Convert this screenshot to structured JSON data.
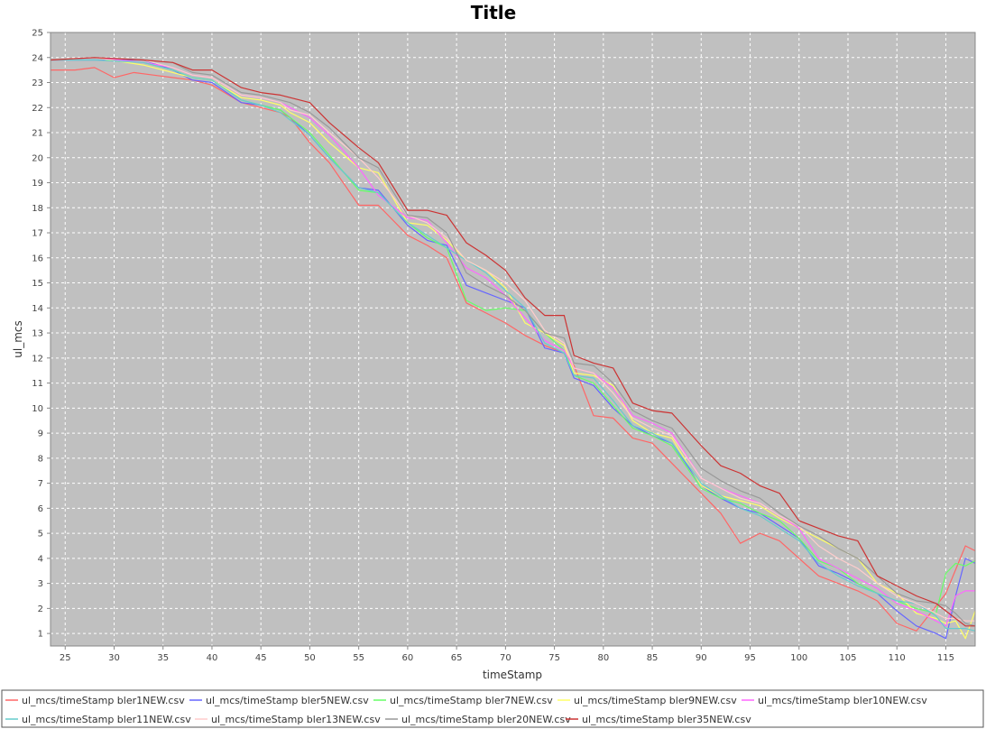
{
  "chart_data": {
    "type": "line",
    "title": "Title",
    "xlabel": "timeStamp",
    "ylabel": "ul_mcs",
    "xlim": [
      23.5,
      118
    ],
    "ylim": [
      0.5,
      25
    ],
    "xticks": [
      25,
      30,
      35,
      40,
      45,
      50,
      55,
      60,
      65,
      70,
      75,
      80,
      85,
      90,
      95,
      100,
      105,
      110,
      115
    ],
    "yticks": [
      1,
      2,
      3,
      4,
      5,
      6,
      7,
      8,
      9,
      10,
      11,
      12,
      13,
      14,
      15,
      16,
      17,
      18,
      19,
      20,
      21,
      22,
      23,
      24,
      25
    ],
    "xtick_labels": [
      "25",
      "30",
      "35",
      "40",
      "45",
      "50",
      "55",
      "60",
      "65",
      "70",
      "75",
      "80",
      "85",
      "90",
      "95",
      "100",
      "105",
      "110",
      "115"
    ],
    "ytick_labels": [
      "1",
      "2",
      "3",
      "4",
      "5",
      "6",
      "7",
      "8",
      "9",
      "10",
      "11",
      "12",
      "13",
      "14",
      "15",
      "16",
      "17",
      "18",
      "19",
      "20",
      "21",
      "22",
      "23",
      "24",
      "25"
    ],
    "grid": true,
    "legend_position": "bottom",
    "plot_background": "#c0c0c0",
    "series": [
      {
        "name": "ul_mcs/timeStamp bler1NEW.csv",
        "color": "#ff6666",
        "x": [
          23.5,
          26,
          28,
          30,
          32,
          34,
          36,
          38,
          40,
          43,
          45,
          47,
          48,
          50,
          52,
          55,
          57,
          60,
          62,
          64,
          66,
          68,
          70,
          72,
          74,
          76,
          77,
          79,
          81,
          83,
          85,
          87,
          90,
          92,
          94,
          96,
          98,
          100,
          102,
          104,
          106,
          108,
          110,
          112,
          113,
          115,
          117,
          118
        ],
        "y": [
          23.5,
          23.5,
          23.6,
          23.2,
          23.4,
          23.3,
          23.2,
          23.1,
          22.9,
          22.2,
          22.0,
          21.8,
          21.6,
          20.6,
          19.8,
          18.1,
          18.1,
          16.9,
          16.5,
          16.0,
          14.2,
          13.8,
          13.4,
          12.9,
          12.5,
          12.2,
          11.7,
          9.7,
          9.6,
          8.8,
          8.6,
          7.8,
          6.6,
          5.8,
          4.6,
          5.0,
          4.7,
          4.0,
          3.3,
          3.0,
          2.7,
          2.3,
          1.4,
          1.1,
          1.6,
          2.6,
          4.5,
          4.3
        ]
      },
      {
        "name": "ul_mcs/timeStamp bler5NEW.csv",
        "color": "#6666ff",
        "x": [
          23.5,
          28,
          33,
          36,
          38,
          40,
          43,
          45,
          47,
          48,
          50,
          52,
          55,
          57,
          60,
          62,
          64,
          66,
          68,
          70,
          72,
          74,
          76,
          77,
          79,
          81,
          83,
          85,
          87,
          90,
          92,
          94,
          96,
          98,
          100,
          102,
          104,
          106,
          108,
          110,
          112,
          114,
          115,
          116,
          117,
          118
        ],
        "y": [
          23.9,
          23.9,
          23.9,
          23.5,
          23.1,
          23.0,
          22.2,
          22.1,
          21.9,
          21.6,
          20.9,
          20.0,
          18.8,
          18.7,
          17.3,
          16.7,
          16.5,
          14.9,
          14.6,
          14.3,
          14.0,
          12.4,
          12.2,
          11.2,
          10.9,
          10.0,
          9.3,
          8.9,
          8.6,
          6.9,
          6.4,
          6.0,
          5.8,
          5.3,
          4.8,
          3.7,
          3.4,
          3.0,
          2.6,
          1.9,
          1.3,
          1.0,
          0.8,
          2.5,
          4.0,
          3.8
        ]
      },
      {
        "name": "ul_mcs/timeStamp bler7NEW.csv",
        "color": "#66ff66",
        "x": [
          23.5,
          28,
          33,
          36,
          38,
          40,
          43,
          45,
          47,
          48,
          50,
          52,
          55,
          57,
          60,
          62,
          64,
          66,
          68,
          70,
          72,
          74,
          76,
          77,
          79,
          81,
          83,
          85,
          87,
          90,
          92,
          94,
          96,
          98,
          100,
          102,
          104,
          106,
          108,
          110,
          112,
          114,
          115,
          116,
          117,
          118
        ],
        "y": [
          23.9,
          24.0,
          23.8,
          23.5,
          23.2,
          23.1,
          22.3,
          22.1,
          21.9,
          21.6,
          21.0,
          20.1,
          18.7,
          18.6,
          17.4,
          16.8,
          16.4,
          14.3,
          13.9,
          14.0,
          13.9,
          13.0,
          12.3,
          11.3,
          11.0,
          10.1,
          9.2,
          8.9,
          8.5,
          6.8,
          6.4,
          6.2,
          5.8,
          5.5,
          4.8,
          3.9,
          3.6,
          3.0,
          2.6,
          2.3,
          2.0,
          1.8,
          3.4,
          3.8,
          3.7,
          3.9
        ]
      },
      {
        "name": "ul_mcs/timeStamp bler9NEW.csv",
        "color": "#ffff66",
        "x": [
          23.5,
          28,
          33,
          36,
          38,
          40,
          43,
          45,
          47,
          48,
          50,
          52,
          55,
          57,
          60,
          62,
          64,
          66,
          68,
          70,
          72,
          74,
          76,
          77,
          79,
          81,
          83,
          85,
          87,
          90,
          92,
          94,
          96,
          98,
          100,
          102,
          104,
          106,
          108,
          110,
          112,
          114,
          115,
          116,
          117,
          118
        ],
        "y": [
          23.9,
          24.0,
          23.7,
          23.4,
          23.2,
          23.1,
          22.4,
          22.3,
          22.1,
          21.8,
          21.4,
          20.6,
          19.6,
          19.4,
          17.4,
          17.3,
          16.7,
          15.9,
          15.5,
          14.8,
          13.4,
          13.0,
          12.5,
          11.4,
          11.3,
          10.9,
          9.5,
          9.0,
          8.8,
          6.9,
          6.5,
          6.3,
          6.1,
          5.6,
          5.2,
          4.8,
          4.4,
          4.0,
          3.0,
          2.6,
          1.8,
          1.6,
          1.4,
          1.5,
          0.8,
          1.9
        ]
      },
      {
        "name": "ul_mcs/timeStamp bler10NEW.csv",
        "color": "#ff66ff",
        "x": [
          23.5,
          28,
          33,
          36,
          38,
          40,
          43,
          45,
          47,
          48,
          50,
          52,
          55,
          57,
          60,
          62,
          64,
          66,
          68,
          70,
          72,
          74,
          76,
          77,
          79,
          81,
          83,
          85,
          87,
          90,
          92,
          94,
          96,
          98,
          100,
          102,
          104,
          106,
          108,
          110,
          112,
          114,
          115,
          116,
          117,
          118
        ],
        "y": [
          23.9,
          24.0,
          23.8,
          23.6,
          23.3,
          23.2,
          22.5,
          22.4,
          22.2,
          22.0,
          21.6,
          20.9,
          19.6,
          18.5,
          17.6,
          17.5,
          16.6,
          15.6,
          15.2,
          14.5,
          13.6,
          12.7,
          12.3,
          11.6,
          11.4,
          10.8,
          9.7,
          9.4,
          9.0,
          7.2,
          6.8,
          6.5,
          6.2,
          5.7,
          5.2,
          4.0,
          3.6,
          3.2,
          2.8,
          2.2,
          1.9,
          1.5,
          1.3,
          2.5,
          2.7,
          2.7
        ]
      },
      {
        "name": "ul_mcs/timeStamp bler11NEW.csv",
        "color": "#66cccc",
        "x": [
          23.5,
          28,
          33,
          36,
          38,
          40,
          43,
          45,
          47,
          48,
          50,
          52,
          55,
          57,
          60,
          62,
          64,
          66,
          68,
          70,
          72,
          74,
          76,
          77,
          79,
          81,
          83,
          85,
          87,
          90,
          92,
          94,
          96,
          98,
          100,
          102,
          104,
          106,
          108,
          110,
          112,
          114,
          115,
          116,
          117,
          118
        ],
        "y": [
          23.9,
          23.9,
          23.8,
          23.5,
          23.2,
          23.1,
          22.3,
          22.1,
          21.8,
          21.5,
          20.9,
          20.0,
          18.8,
          18.6,
          17.4,
          16.9,
          16.4,
          15.9,
          15.4,
          14.7,
          14.0,
          12.6,
          12.2,
          11.3,
          11.2,
          10.3,
          9.3,
          9.0,
          8.6,
          7.0,
          6.5,
          6.0,
          5.7,
          5.2,
          4.7,
          3.8,
          3.3,
          2.9,
          2.6,
          2.3,
          2.2,
          1.7,
          1.2,
          1.2,
          1.2,
          1.1
        ]
      },
      {
        "name": "ul_mcs/timeStamp bler13NEW.csv",
        "color": "#ffcccc",
        "x": [
          23.5,
          28,
          33,
          36,
          38,
          40,
          43,
          45,
          47,
          48,
          50,
          52,
          55,
          57,
          60,
          62,
          64,
          66,
          68,
          70,
          72,
          74,
          76,
          77,
          79,
          81,
          83,
          85,
          87,
          90,
          92,
          94,
          96,
          98,
          100,
          102,
          104,
          106,
          108,
          110,
          112,
          114,
          115,
          116,
          117,
          118
        ],
        "y": [
          23.9,
          24.0,
          23.9,
          23.6,
          23.3,
          23.2,
          22.5,
          22.4,
          22.2,
          21.9,
          21.7,
          21.0,
          20.0,
          19.2,
          17.7,
          17.4,
          16.8,
          15.9,
          15.5,
          15.0,
          14.3,
          13.1,
          12.6,
          11.6,
          11.4,
          10.6,
          9.6,
          9.2,
          8.9,
          7.2,
          6.8,
          6.4,
          6.2,
          5.7,
          5.3,
          4.5,
          4.0,
          3.6,
          3.0,
          2.5,
          2.2,
          1.8,
          1.6,
          1.6,
          1.5,
          1.5
        ]
      },
      {
        "name": "ul_mcs/timeStamp bler20NEW.csv",
        "color": "#999999",
        "x": [
          23.5,
          28,
          33,
          36,
          38,
          40,
          43,
          45,
          47,
          48,
          50,
          52,
          55,
          57,
          60,
          62,
          64,
          66,
          68,
          70,
          72,
          74,
          76,
          77,
          79,
          81,
          83,
          85,
          87,
          90,
          92,
          94,
          96,
          98,
          100,
          102,
          104,
          106,
          108,
          110,
          112,
          114,
          115,
          116,
          117,
          118
        ],
        "y": [
          23.9,
          24.0,
          23.9,
          23.8,
          23.4,
          23.3,
          22.6,
          22.5,
          22.3,
          22.2,
          21.8,
          21.2,
          20.0,
          19.6,
          17.7,
          17.6,
          17.0,
          15.4,
          14.9,
          14.5,
          13.9,
          13.0,
          12.8,
          11.8,
          11.7,
          11.0,
          9.9,
          9.5,
          9.2,
          7.6,
          7.1,
          6.7,
          6.4,
          5.8,
          5.3,
          4.9,
          4.4,
          4.0,
          3.3,
          2.6,
          2.3,
          2.2,
          2.1,
          1.8,
          1.4,
          1.3
        ]
      },
      {
        "name": "ul_mcs/timeStamp bler35NEW.csv",
        "color": "#cc3333",
        "x": [
          23.5,
          28,
          33,
          36,
          38,
          40,
          43,
          45,
          47,
          48,
          50,
          52,
          55,
          57,
          60,
          62,
          64,
          66,
          68,
          70,
          72,
          74,
          76,
          77,
          79,
          81,
          83,
          85,
          87,
          90,
          92,
          94,
          96,
          98,
          100,
          102,
          104,
          106,
          108,
          110,
          112,
          114,
          115,
          116,
          117,
          118
        ],
        "y": [
          23.9,
          24.0,
          23.9,
          23.8,
          23.5,
          23.5,
          22.8,
          22.6,
          22.5,
          22.4,
          22.2,
          21.4,
          20.4,
          19.8,
          17.9,
          17.9,
          17.7,
          16.6,
          16.1,
          15.5,
          14.4,
          13.7,
          13.7,
          12.1,
          11.8,
          11.6,
          10.2,
          9.9,
          9.8,
          8.5,
          7.7,
          7.4,
          6.9,
          6.6,
          5.5,
          5.2,
          4.9,
          4.7,
          3.3,
          2.9,
          2.5,
          2.2,
          1.9,
          1.6,
          1.3,
          1.3
        ]
      }
    ]
  }
}
